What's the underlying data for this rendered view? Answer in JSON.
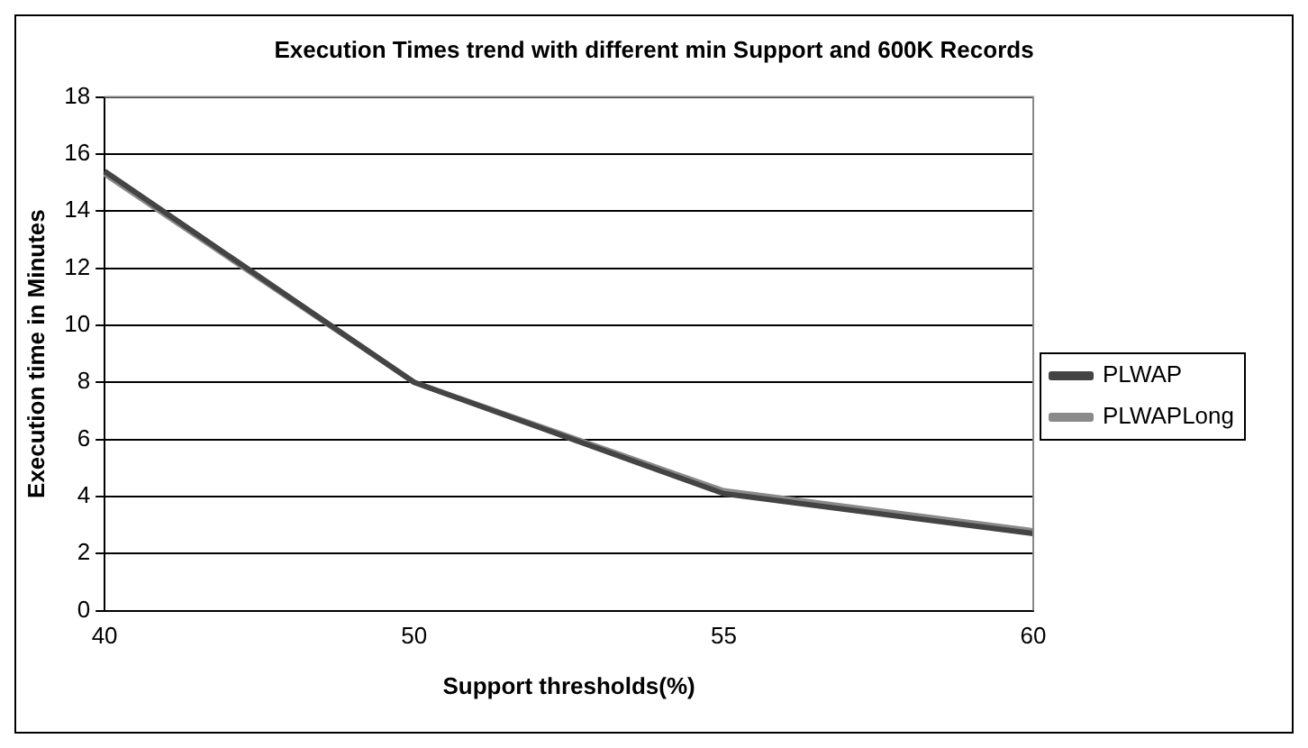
{
  "chart_data": {
    "type": "line",
    "title": "Execution Times trend with different min Support and 600K Records",
    "xlabel": "Support thresholds(%)",
    "ylabel": "Execution time in Minutes",
    "categories": [
      "40",
      "50",
      "55",
      "60"
    ],
    "series": [
      {
        "name": "PLWAP",
        "color": "#444444",
        "values": [
          15.4,
          8,
          4.1,
          2.7
        ]
      },
      {
        "name": "PLWAPLong",
        "color": "#8a8a8a",
        "values": [
          15.3,
          8,
          4.2,
          2.8
        ]
      }
    ],
    "ylim": [
      0,
      18
    ],
    "yticks": [
      0,
      2,
      4,
      6,
      8,
      10,
      12,
      14,
      16,
      18
    ],
    "grid": "y",
    "legend": "right",
    "marker": "none",
    "line_style": "solid"
  }
}
